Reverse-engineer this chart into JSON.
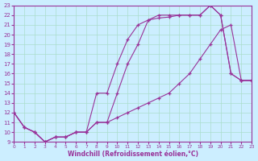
{
  "xlabel": "Windchill (Refroidissement éolien,°C)",
  "bg_color": "#cceeff",
  "grid_color": "#aaddcc",
  "line_color": "#993399",
  "xlim": [
    0,
    23
  ],
  "ylim": [
    9,
    23
  ],
  "yticks": [
    9,
    10,
    11,
    12,
    13,
    14,
    15,
    16,
    17,
    18,
    19,
    20,
    21,
    22,
    23
  ],
  "xticks": [
    0,
    1,
    2,
    3,
    4,
    5,
    6,
    7,
    8,
    9,
    10,
    11,
    12,
    13,
    14,
    15,
    16,
    17,
    18,
    19,
    20,
    21,
    22,
    23
  ],
  "line1_x": [
    0,
    1,
    2,
    3,
    4,
    5,
    6,
    7,
    8,
    9,
    10,
    11,
    12,
    13,
    14,
    15,
    16,
    17,
    18,
    19,
    20,
    21,
    22,
    23
  ],
  "line1_y": [
    12,
    10.5,
    10,
    9,
    9.5,
    9.5,
    10,
    10,
    11,
    11,
    14,
    17,
    19,
    21.5,
    21.7,
    21.8,
    22,
    22,
    22,
    23,
    22,
    16,
    15.3,
    15.3
  ],
  "line2_x": [
    0,
    1,
    2,
    3,
    4,
    5,
    6,
    7,
    8,
    9,
    10,
    11,
    12,
    13,
    14,
    15,
    16,
    17,
    18,
    19,
    20,
    21,
    22,
    23
  ],
  "line2_y": [
    12,
    10.5,
    10,
    9,
    9.5,
    9.5,
    10,
    10,
    14,
    14,
    17,
    19.5,
    21,
    21.5,
    22,
    22,
    22,
    22,
    22,
    23,
    22,
    16,
    15.3,
    15.3
  ],
  "line3_x": [
    0,
    1,
    2,
    3,
    4,
    5,
    6,
    7,
    8,
    9,
    10,
    11,
    12,
    13,
    14,
    15,
    16,
    17,
    18,
    19,
    20,
    21,
    22,
    23
  ],
  "line3_y": [
    12,
    10.5,
    10,
    9,
    9.5,
    9.5,
    10,
    10,
    11,
    11,
    11.5,
    12,
    12.5,
    13,
    13.5,
    14,
    15,
    16,
    17.5,
    19,
    20.5,
    21,
    15.3,
    15.3
  ]
}
